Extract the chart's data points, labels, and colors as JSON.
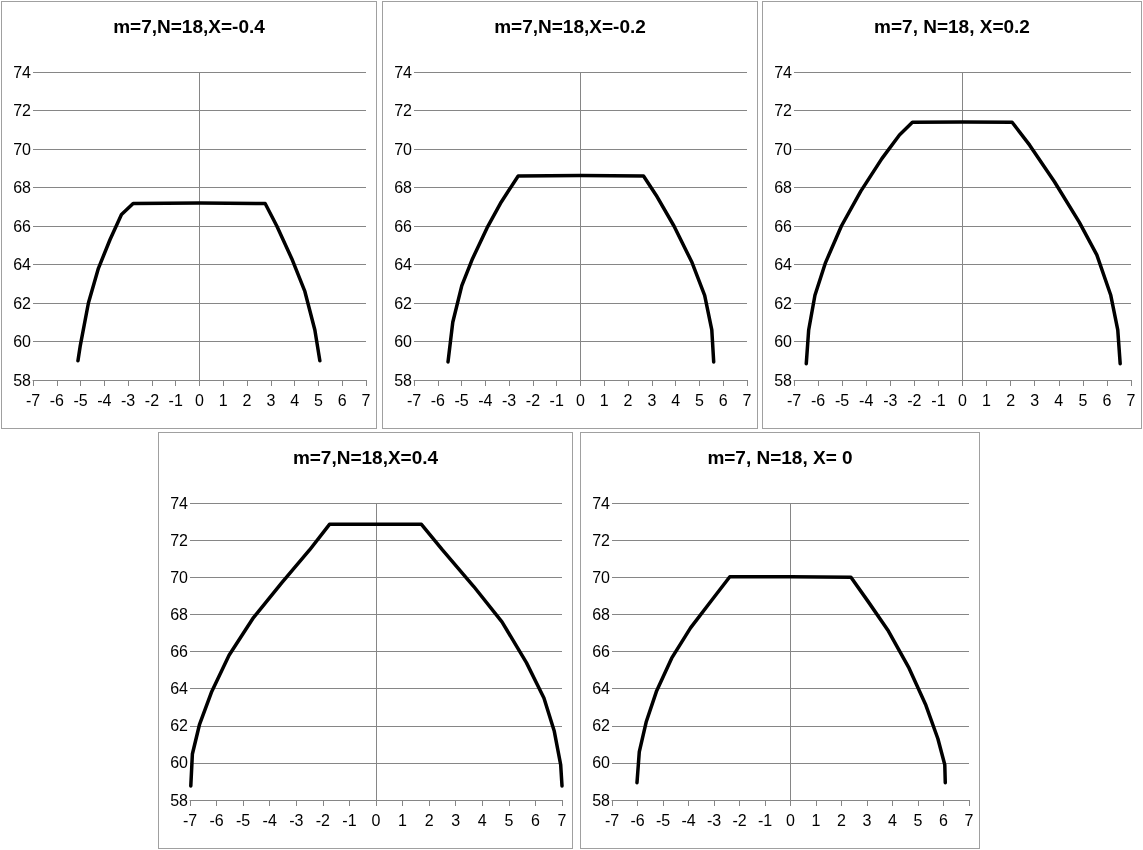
{
  "chart_data": [
    {
      "type": "line",
      "title": "m=7,N=18,X=-0.4",
      "color": "#000000",
      "ref_lines": [
        {
          "axis": "x",
          "value": 0,
          "color": "#868686"
        }
      ],
      "marker": "none",
      "line_style": "solid",
      "grid": "y",
      "xlim": [
        -7,
        7
      ],
      "xticks": [
        -7,
        -6,
        -5,
        -4,
        -3,
        -2,
        -1,
        0,
        1,
        2,
        3,
        4,
        5,
        6,
        7
      ],
      "ylim": [
        58,
        74
      ],
      "yticks": [
        58,
        60,
        62,
        64,
        66,
        68,
        70,
        72,
        74
      ],
      "x": [
        -5.11,
        -5.01,
        -4.67,
        -4.25,
        -3.76,
        -3.28,
        -2.79,
        0,
        2.76,
        3.25,
        3.88,
        4.43,
        4.85,
        5.06
      ],
      "values": [
        59.0,
        59.8,
        62.0,
        63.8,
        65.3,
        66.6,
        67.17,
        67.2,
        67.17,
        66.0,
        64.3,
        62.6,
        60.6,
        59.0
      ]
    },
    {
      "type": "line",
      "title": "m=7,N=18,X=-0.2",
      "color": "#000000",
      "ref_lines": [
        {
          "axis": "x",
          "value": 0,
          "color": "#868686"
        }
      ],
      "marker": "none",
      "line_style": "solid",
      "grid": "y",
      "xlim": [
        -7,
        7
      ],
      "xticks": [
        -7,
        -6,
        -5,
        -4,
        -3,
        -2,
        -1,
        0,
        1,
        2,
        3,
        4,
        5,
        6,
        7
      ],
      "ylim": [
        58,
        74
      ],
      "yticks": [
        58,
        60,
        62,
        64,
        66,
        68,
        70,
        72,
        74
      ],
      "x": [
        -5.57,
        -5.37,
        -4.99,
        -4.54,
        -3.93,
        -3.33,
        -2.62,
        0,
        2.65,
        3.18,
        3.93,
        4.69,
        5.22,
        5.52,
        5.6
      ],
      "values": [
        58.94,
        61.0,
        62.9,
        64.3,
        65.9,
        67.25,
        68.6,
        68.62,
        68.6,
        67.6,
        66.0,
        64.1,
        62.4,
        60.6,
        58.94
      ]
    },
    {
      "type": "line",
      "title": "m=7, N=18, X=0.2",
      "color": "#000000",
      "ref_lines": [
        {
          "axis": "x",
          "value": 0,
          "color": "#868686"
        }
      ],
      "marker": "none",
      "line_style": "solid",
      "grid": "y",
      "xlim": [
        -7,
        7
      ],
      "xticks": [
        -7,
        -6,
        -5,
        -4,
        -3,
        -2,
        -1,
        0,
        1,
        2,
        3,
        4,
        5,
        6,
        7
      ],
      "ylim": [
        58,
        74
      ],
      "yticks": [
        58,
        60,
        62,
        64,
        66,
        68,
        70,
        72,
        74
      ],
      "x": [
        -6.49,
        -6.39,
        -6.13,
        -5.69,
        -5.03,
        -4.23,
        -3.35,
        -2.62,
        -2.08,
        0,
        2.06,
        2.79,
        3.82,
        4.85,
        5.58,
        6.16,
        6.45,
        6.55
      ],
      "values": [
        58.85,
        60.6,
        62.4,
        64.1,
        66.0,
        67.8,
        69.5,
        70.73,
        71.39,
        71.4,
        71.39,
        70.2,
        68.3,
        66.2,
        64.5,
        62.4,
        60.6,
        58.85
      ]
    },
    {
      "type": "line",
      "title": "m=7,N=18,X=0.4",
      "color": "#000000",
      "ref_lines": [
        {
          "axis": "x",
          "value": 0,
          "color": "#868686"
        }
      ],
      "marker": "none",
      "line_style": "solid",
      "grid": "y",
      "xlim": [
        -7,
        7
      ],
      "xticks": [
        -7,
        -6,
        -5,
        -4,
        -3,
        -2,
        -1,
        0,
        1,
        2,
        3,
        4,
        5,
        6,
        7
      ],
      "ylim": [
        58,
        74
      ],
      "yticks": [
        58,
        60,
        62,
        64,
        66,
        68,
        70,
        72,
        74
      ],
      "x": [
        -6.97,
        -6.91,
        -6.64,
        -6.18,
        -5.53,
        -4.61,
        -3.55,
        -2.5,
        -1.75,
        0,
        1.71,
        2.5,
        3.68,
        4.74,
        5.66,
        6.32,
        6.71,
        6.95,
        7.0
      ],
      "values": [
        58.76,
        60.48,
        62.08,
        63.85,
        65.8,
        67.83,
        69.7,
        71.47,
        72.85,
        72.86,
        72.85,
        71.47,
        69.5,
        67.6,
        65.4,
        63.5,
        61.7,
        59.9,
        58.76
      ]
    },
    {
      "type": "line",
      "title": "m=7, N=18, X= 0",
      "color": "#000000",
      "ref_lines": [
        {
          "axis": "x",
          "value": 0,
          "color": "#868686"
        }
      ],
      "marker": "none",
      "line_style": "solid",
      "grid": "y",
      "xlim": [
        -7,
        7
      ],
      "xticks": [
        -7,
        -6,
        -5,
        -4,
        -3,
        -2,
        -1,
        0,
        1,
        2,
        3,
        4,
        5,
        6,
        7
      ],
      "ylim": [
        58,
        74
      ],
      "yticks": [
        58,
        60,
        62,
        64,
        66,
        68,
        70,
        72,
        74
      ],
      "x": [
        -6.02,
        -5.93,
        -5.66,
        -5.26,
        -4.66,
        -3.92,
        -3.12,
        -2.38,
        0,
        2.37,
        3.04,
        3.84,
        4.65,
        5.31,
        5.78,
        6.05,
        6.07
      ],
      "values": [
        58.93,
        60.59,
        62.2,
        63.84,
        65.64,
        67.27,
        68.71,
        70.03,
        70.03,
        70.0,
        68.7,
        67.1,
        65.1,
        63.1,
        61.3,
        59.9,
        58.93
      ]
    }
  ]
}
